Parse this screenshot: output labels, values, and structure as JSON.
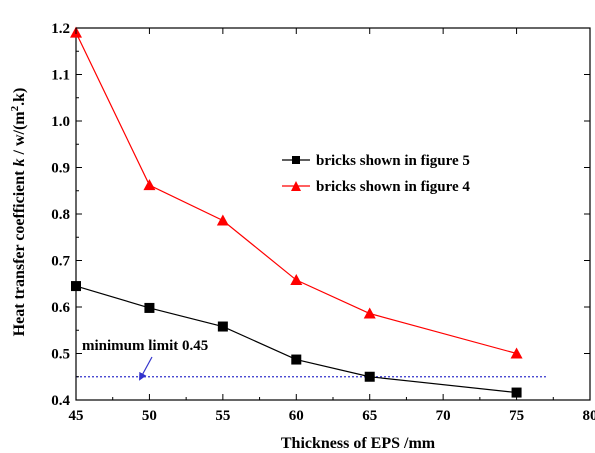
{
  "chart_data": {
    "type": "line",
    "title": "",
    "xlabel": "Thickness of EPS /mm",
    "ylabel": {
      "prefix": "Heat transfer coefficient ",
      "k": "k",
      "mid": " / w/(m",
      "sup": "2",
      "suffix": ".k)"
    },
    "xlim": [
      45,
      80
    ],
    "ylim": [
      0.4,
      1.2
    ],
    "xticks": [
      45,
      50,
      55,
      60,
      65,
      70,
      75,
      80
    ],
    "xtick_labels": [
      "45",
      "50",
      "55",
      "60",
      "65",
      "70",
      "75",
      "80"
    ],
    "yticks": [
      0.4,
      0.5,
      0.6,
      0.7,
      0.8,
      0.9,
      1.0,
      1.1,
      1.2
    ],
    "ytick_labels": [
      "0.4",
      "0.5",
      "0.6",
      "0.7",
      "0.8",
      "0.9",
      "1.0",
      "1.1",
      "1.2"
    ],
    "grid": false,
    "legend_position": "upper-right",
    "series": [
      {
        "name": "bricks shown in figure 5",
        "color": "#000000",
        "marker": "square",
        "x": [
          45,
          50,
          55,
          60,
          65,
          75
        ],
        "y": [
          0.645,
          0.598,
          0.558,
          0.487,
          0.45,
          0.416
        ]
      },
      {
        "name": "bricks shown in figure 4",
        "color": "#ff0000",
        "marker": "triangle",
        "x": [
          45,
          50,
          55,
          60,
          65,
          75
        ],
        "y": [
          1.19,
          0.862,
          0.786,
          0.658,
          0.586,
          0.5
        ]
      }
    ],
    "reference_line": {
      "y": 0.45,
      "x_range": [
        45,
        77
      ],
      "color": "#3333cc",
      "style": "dotted"
    },
    "annotation": {
      "text": "minimum limit 0.45",
      "arrow_color": "#3333cc"
    }
  }
}
